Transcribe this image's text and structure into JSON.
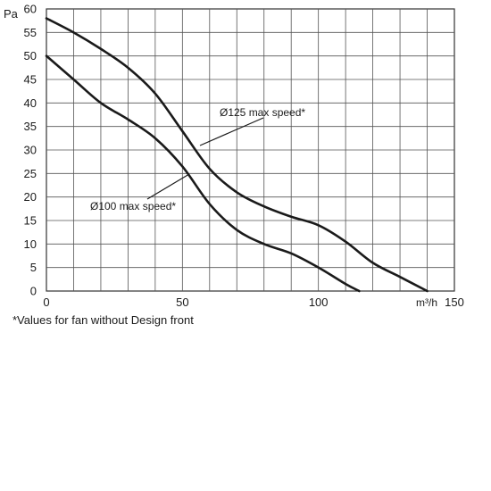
{
  "chart_data": {
    "type": "line",
    "ylabel": "Pa",
    "xlabel": "m³/h",
    "xlim": [
      0,
      150
    ],
    "ylim": [
      0,
      60
    ],
    "x_ticks": [
      0,
      50,
      100,
      150
    ],
    "y_ticks": [
      0,
      5,
      10,
      15,
      20,
      25,
      30,
      35,
      40,
      45,
      50,
      55,
      60
    ],
    "grid": true,
    "series": [
      {
        "name": "Ø125 max speed*",
        "points": [
          [
            0,
            58
          ],
          [
            10,
            55
          ],
          [
            20,
            51.5
          ],
          [
            30,
            47.5
          ],
          [
            40,
            42
          ],
          [
            50,
            34
          ],
          [
            60,
            26
          ],
          [
            70,
            21
          ],
          [
            80,
            18
          ],
          [
            90,
            15.8
          ],
          [
            100,
            14
          ],
          [
            110,
            10.5
          ],
          [
            120,
            6
          ],
          [
            130,
            3
          ],
          [
            140,
            0
          ]
        ]
      },
      {
        "name": "Ø100 max speed*",
        "points": [
          [
            0,
            50
          ],
          [
            10,
            45
          ],
          [
            20,
            40
          ],
          [
            30,
            36.5
          ],
          [
            40,
            32.5
          ],
          [
            50,
            26.5
          ],
          [
            60,
            18.5
          ],
          [
            70,
            13
          ],
          [
            80,
            10
          ],
          [
            90,
            8
          ],
          [
            100,
            5
          ],
          [
            110,
            1.5
          ],
          [
            115,
            0
          ]
        ]
      }
    ]
  },
  "footnote": "*Values for fan without Design front"
}
